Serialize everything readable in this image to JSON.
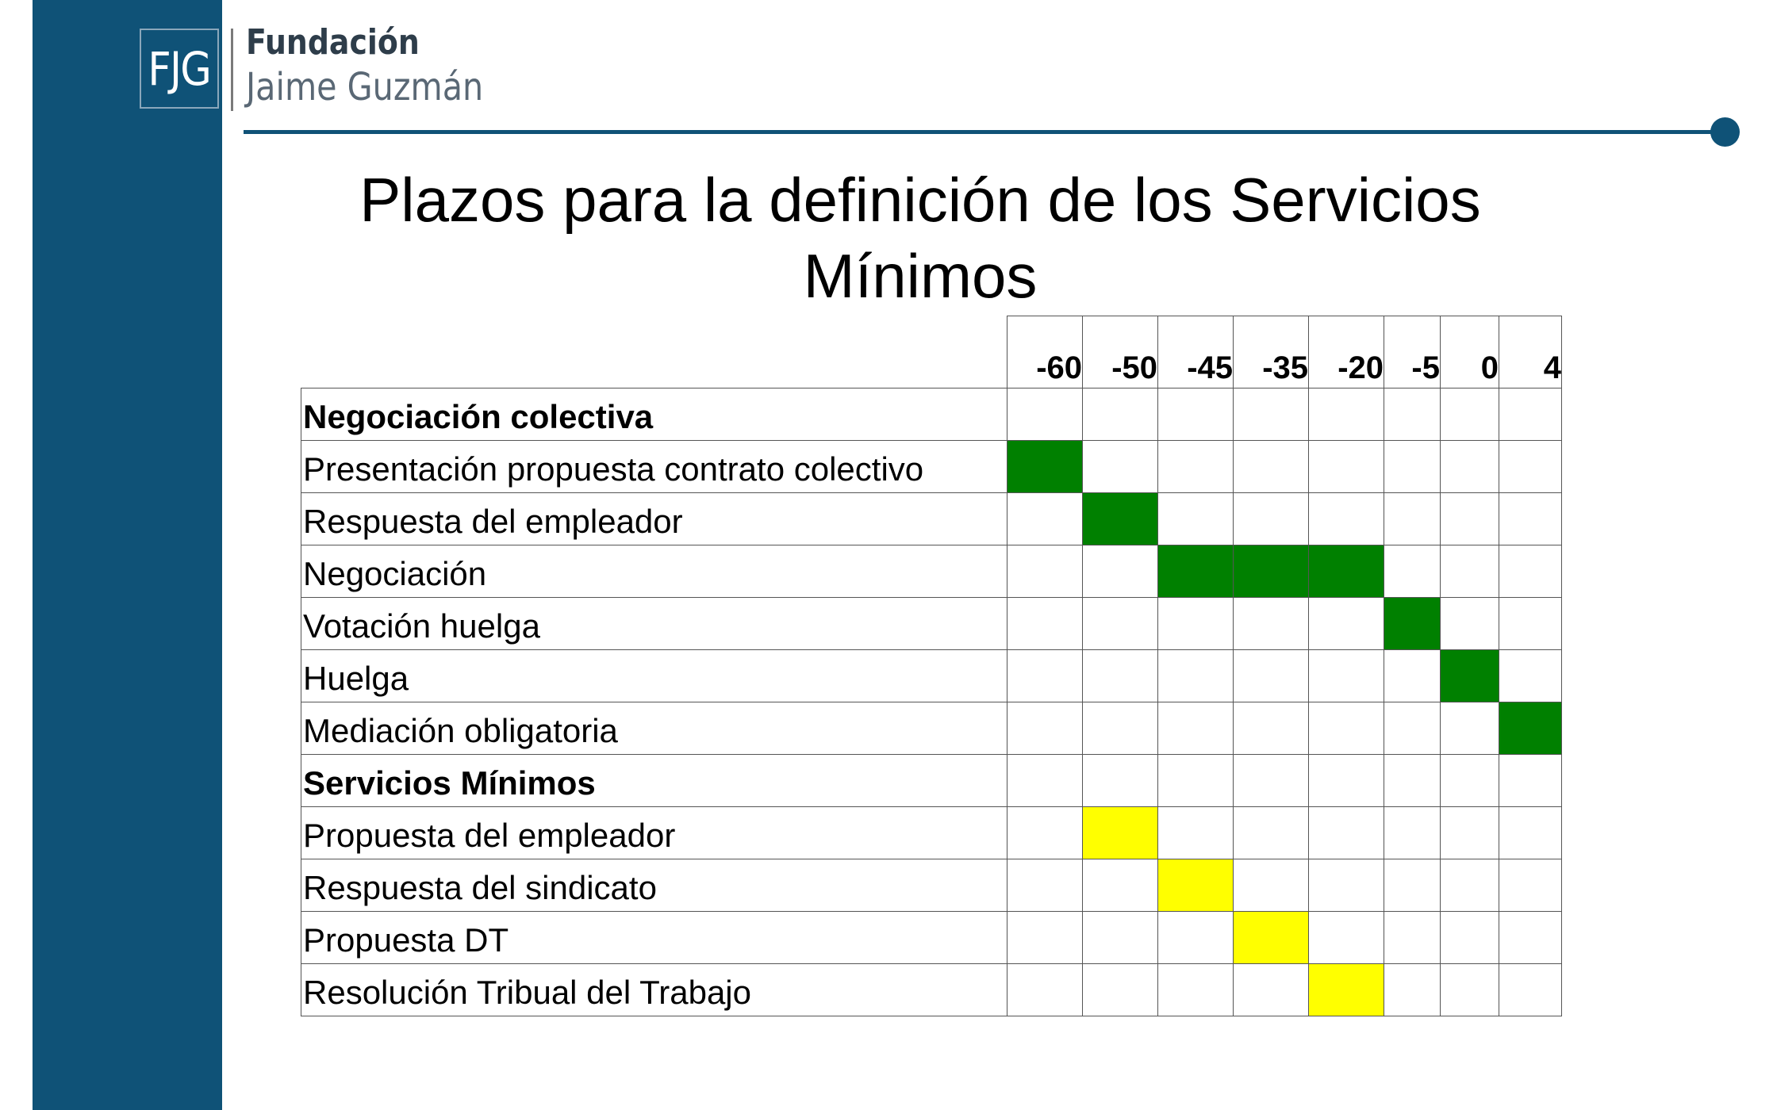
{
  "logo": {
    "initials": "FJG",
    "line1": "Fundación",
    "line2": "Jaime Guzmán"
  },
  "title": "Plazos para la definición de los Servicios Mínimos",
  "colors": {
    "brand": "#0f5277",
    "negotiation_fill": "#008000",
    "services_fill": "#ffff00"
  },
  "timeline": {
    "columns": [
      "-60",
      "-50",
      "-45",
      "-35",
      "-20",
      "-5",
      "0",
      "4"
    ],
    "rows": [
      {
        "label": "Negociación colectiva",
        "section": true,
        "fill": null,
        "cells": []
      },
      {
        "label": "Presentación propuesta contrato colectivo",
        "section": false,
        "fill": "negotiation_fill",
        "cells": [
          0
        ]
      },
      {
        "label": "Respuesta del empleador",
        "section": false,
        "fill": "negotiation_fill",
        "cells": [
          1
        ]
      },
      {
        "label": "Negociación",
        "section": false,
        "fill": "negotiation_fill",
        "cells": [
          2,
          3,
          4
        ]
      },
      {
        "label": "Votación huelga",
        "section": false,
        "fill": "negotiation_fill",
        "cells": [
          5
        ]
      },
      {
        "label": "Huelga",
        "section": false,
        "fill": "negotiation_fill",
        "cells": [
          6
        ]
      },
      {
        "label": "Mediación obligatoria",
        "section": false,
        "fill": "negotiation_fill",
        "cells": [
          7
        ]
      },
      {
        "label": "Servicios Mínimos",
        "section": true,
        "fill": null,
        "cells": []
      },
      {
        "label": "Propuesta del empleador",
        "section": false,
        "fill": "services_fill",
        "cells": [
          1
        ]
      },
      {
        "label": "Respuesta del sindicato",
        "section": false,
        "fill": "services_fill",
        "cells": [
          2
        ]
      },
      {
        "label": "Propuesta DT",
        "section": false,
        "fill": "services_fill",
        "cells": [
          3
        ]
      },
      {
        "label": "Resolución Tribual del Trabajo",
        "section": false,
        "fill": "services_fill",
        "cells": [
          4
        ]
      }
    ]
  }
}
